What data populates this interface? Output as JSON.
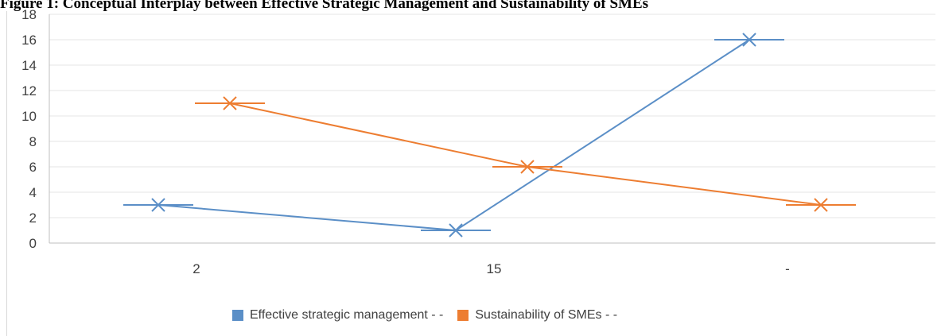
{
  "caption": "Figure 1: Conceptual Interplay between Effective Strategic Management and Sustainability of SMEs",
  "chart_data": {
    "type": "line",
    "categories": [
      "2",
      "15",
      "-"
    ],
    "ylim": [
      0,
      18
    ],
    "yticks": [
      0,
      2,
      4,
      6,
      8,
      10,
      12,
      14,
      16,
      18
    ],
    "grid": true,
    "legend_position": "bottom",
    "markers": "x",
    "series": [
      {
        "name": "Effective strategic management - -",
        "color": "#5b8fc7",
        "values": [
          3,
          1,
          16
        ]
      },
      {
        "name": "Sustainability of SMEs - -",
        "color": "#ed7d31",
        "values": [
          11,
          6,
          3
        ]
      }
    ]
  }
}
